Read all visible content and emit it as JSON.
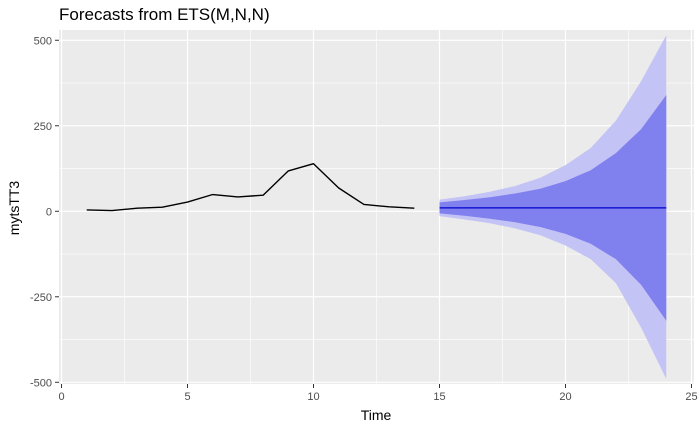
{
  "chart_data": {
    "type": "line",
    "title": "Forecasts from ETS(M,N,N)",
    "xlabel": "Time",
    "ylabel": "mytsTT3",
    "xlim": [
      -0.1,
      25.1
    ],
    "ylim": [
      -505,
      530
    ],
    "x_ticks": [
      0,
      5,
      10,
      15,
      20,
      25
    ],
    "x_tick_labels": [
      "0",
      "5",
      "10",
      "15",
      "20",
      "25"
    ],
    "y_ticks": [
      -500,
      -250,
      0,
      250,
      500
    ],
    "y_tick_labels": [
      "-500",
      "-250",
      "0",
      "250",
      "500"
    ],
    "grid": true,
    "legend": "none",
    "series": [
      {
        "role": "observed",
        "color": "#000000",
        "x": [
          1,
          2,
          3,
          4,
          5,
          6,
          7,
          8,
          9,
          10,
          11,
          12,
          13,
          14
        ],
        "y": [
          4,
          2,
          9,
          12,
          27,
          49,
          42,
          47,
          118,
          139,
          68,
          20,
          13,
          9
        ]
      },
      {
        "role": "point-forecast",
        "color": "#0000cc",
        "x": [
          15,
          16,
          17,
          18,
          19,
          20,
          21,
          22,
          23,
          24
        ],
        "y": [
          10,
          10,
          10,
          10,
          10,
          10,
          10,
          10,
          10,
          10
        ]
      }
    ],
    "intervals": [
      {
        "level": "95",
        "color": "#c3c3f5",
        "x": [
          15,
          16,
          17,
          18,
          19,
          20,
          21,
          22,
          23,
          24
        ],
        "lower": [
          -14,
          -24,
          -35,
          -50,
          -70,
          -100,
          -140,
          -210,
          -340,
          -490
        ],
        "upper": [
          34,
          44,
          57,
          74,
          98,
          135,
          185,
          265,
          380,
          515
        ]
      },
      {
        "level": "80",
        "color": "#8080ee",
        "x": [
          15,
          16,
          17,
          18,
          19,
          20,
          21,
          22,
          23,
          24
        ],
        "lower": [
          -6,
          -13,
          -22,
          -32,
          -46,
          -66,
          -95,
          -140,
          -215,
          -320
        ],
        "upper": [
          26,
          33,
          41,
          52,
          66,
          88,
          120,
          170,
          240,
          340
        ]
      }
    ]
  }
}
